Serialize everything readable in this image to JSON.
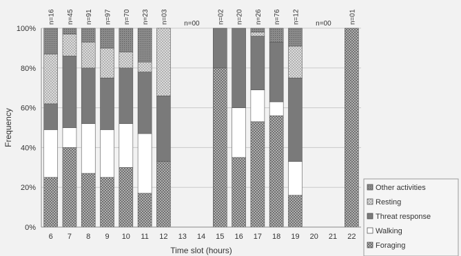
{
  "chart_data": {
    "type": "bar",
    "stacked": true,
    "normalized": true,
    "xlabel": "Time slot (hours)",
    "ylabel": "Frequency",
    "categories": [
      "6",
      "7",
      "8",
      "9",
      "10",
      "11",
      "12",
      "13",
      "14",
      "15",
      "16",
      "17",
      "18",
      "19",
      "20",
      "21",
      "22"
    ],
    "sample_labels": [
      "n=16",
      "n=45",
      "n=91",
      "n=97",
      "n=70",
      "n=23",
      "n=03",
      "n=00",
      "",
      "n=02",
      "n=20",
      "n=26",
      "n=76",
      "n=12",
      "n=00",
      "",
      "n=01"
    ],
    "yticks": [
      "0%",
      "20%",
      "40%",
      "60%",
      "80%",
      "100%"
    ],
    "ylim": [
      0,
      100
    ],
    "series": [
      {
        "name": "Foraging",
        "values": [
          25,
          40,
          27,
          25,
          30,
          17,
          33,
          0,
          0,
          80,
          35,
          53,
          56,
          16,
          0,
          0,
          100
        ]
      },
      {
        "name": "Walking",
        "values": [
          24,
          10,
          25,
          24,
          22,
          30,
          0,
          0,
          0,
          0,
          25,
          16,
          7,
          17,
          0,
          0,
          0
        ]
      },
      {
        "name": "Threat response",
        "values": [
          13,
          36,
          28,
          26,
          28,
          31,
          33,
          0,
          0,
          20,
          40,
          27,
          30,
          42,
          0,
          0,
          0
        ]
      },
      {
        "name": "Resting",
        "values": [
          25,
          11,
          13,
          15,
          8,
          5,
          34,
          0,
          0,
          0,
          0,
          2,
          0,
          16,
          0,
          0,
          0
        ]
      },
      {
        "name": "Other activities",
        "values": [
          13,
          3,
          7,
          10,
          12,
          17,
          0,
          0,
          0,
          0,
          0,
          2,
          7,
          9,
          0,
          0,
          0
        ]
      }
    ],
    "legend": [
      "Other activities",
      "Resting",
      "Threat response",
      "Walking",
      "Foraging"
    ],
    "legend_position": "bottom-right",
    "grid": true,
    "colors": {
      "Foraging": "#9a9a9a",
      "Walking": "#ffffff",
      "Threat response": "#7a7a7a",
      "Resting": "#d6d6d6",
      "Other activities": "#8c8c8c"
    }
  }
}
